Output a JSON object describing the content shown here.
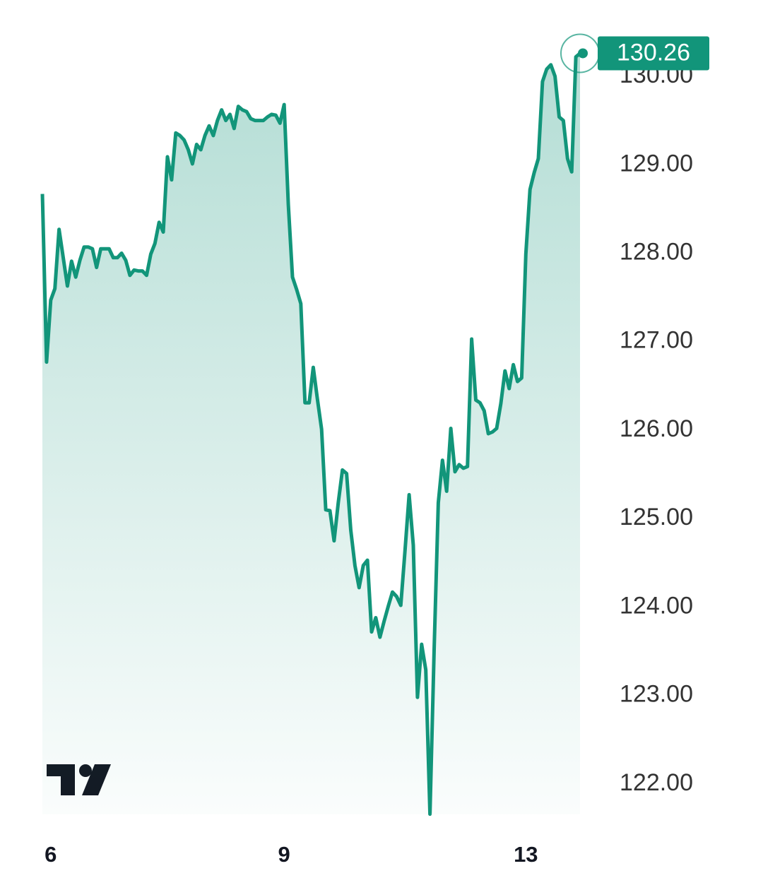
{
  "chart_data": {
    "type": "area",
    "color": "#12957a",
    "categories": [
      null,
      null,
      "6",
      null,
      null,
      null,
      null,
      null,
      null,
      null,
      null,
      null,
      null,
      null,
      null,
      null,
      null,
      null,
      null,
      null,
      null,
      null,
      null,
      null,
      null,
      null,
      null,
      null,
      null,
      null,
      null,
      null,
      null,
      null,
      null,
      null,
      null,
      null,
      null,
      null,
      null,
      null,
      null,
      null,
      null,
      null,
      null,
      null,
      null,
      null,
      null,
      null,
      null,
      null,
      null,
      null,
      null,
      null,
      "9",
      null,
      null,
      null,
      null,
      null,
      null,
      null,
      null,
      null,
      null,
      null,
      null,
      null,
      null,
      null,
      null,
      null,
      null,
      null,
      null,
      null,
      null,
      null,
      null,
      null,
      null,
      null,
      null,
      null,
      null,
      null,
      null,
      null,
      null,
      null,
      null,
      null,
      null,
      null,
      null,
      null,
      null,
      null,
      null,
      null,
      null,
      null,
      null,
      null,
      null,
      null,
      null,
      null,
      null,
      null,
      null,
      null,
      "13",
      null,
      null,
      null,
      null,
      null,
      null,
      null,
      null,
      null,
      null,
      null,
      null,
      null
    ],
    "values": [
      128.67,
      126.77,
      127.47,
      127.6,
      128.27,
      127.95,
      127.63,
      127.91,
      127.73,
      127.92,
      128.07,
      128.07,
      128.05,
      127.84,
      128.05,
      128.05,
      128.05,
      127.95,
      127.95,
      128.0,
      127.92,
      127.75,
      127.81,
      127.8,
      127.8,
      127.75,
      127.99,
      128.11,
      128.35,
      128.24,
      129.09,
      128.83,
      129.36,
      129.33,
      129.28,
      129.17,
      129.01,
      129.23,
      129.17,
      129.33,
      129.44,
      129.33,
      129.5,
      129.62,
      129.5,
      129.57,
      129.41,
      129.66,
      129.62,
      129.6,
      129.52,
      129.5,
      129.5,
      129.5,
      129.54,
      129.57,
      129.56,
      129.47,
      129.68,
      128.55,
      127.73,
      127.59,
      127.43,
      126.31,
      126.31,
      126.71,
      126.35,
      126.01,
      125.1,
      125.09,
      124.75,
      125.18,
      125.55,
      125.51,
      124.87,
      124.47,
      124.22,
      124.47,
      124.53,
      123.72,
      123.88,
      123.66,
      123.84,
      124.01,
      124.17,
      124.12,
      124.02,
      124.63,
      125.27,
      124.7,
      122.98,
      123.58,
      123.29,
      121.66,
      123.52,
      125.18,
      125.66,
      125.31,
      126.02,
      125.53,
      125.61,
      125.57,
      125.59,
      127.03,
      126.34,
      126.31,
      126.22,
      125.96,
      125.98,
      126.02,
      126.3,
      126.67,
      126.47,
      126.74,
      126.55,
      126.59,
      127.99,
      128.72,
      128.91,
      129.07,
      129.94,
      130.08,
      130.13,
      130.0,
      129.54,
      129.5,
      129.07,
      128.92,
      130.22,
      130.26
    ],
    "ylim": [
      121.5,
      130.5
    ],
    "yticks": [
      {
        "value": 122,
        "label": "122.00"
      },
      {
        "value": 123,
        "label": "123.00"
      },
      {
        "value": 124,
        "label": "124.00"
      },
      {
        "value": 125,
        "label": "125.00"
      },
      {
        "value": 126,
        "label": "126.00"
      },
      {
        "value": 127,
        "label": "127.00"
      },
      {
        "value": 128,
        "label": "128.00"
      },
      {
        "value": 129,
        "label": "129.00"
      },
      {
        "value": 130,
        "label": "130.00"
      }
    ]
  }
}
